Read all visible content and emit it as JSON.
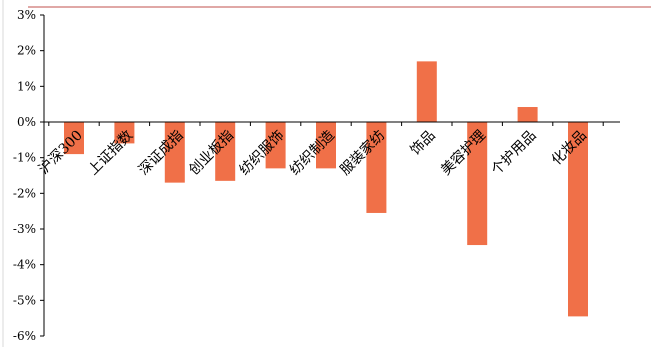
{
  "chart_data": {
    "type": "bar",
    "categories": [
      "沪深300",
      "上证指数",
      "深证成指",
      "创业板指",
      "纺织服饰",
      "纺织制造",
      "服装家纺",
      "饰品",
      "美容护理",
      "个护用品",
      "化妆品"
    ],
    "values": [
      -0.9,
      -0.6,
      -1.7,
      -1.65,
      -1.3,
      -1.3,
      -2.55,
      1.7,
      -3.45,
      0.42,
      -5.45
    ],
    "y_ticks": [
      "3%",
      "2%",
      "1%",
      "0%",
      "-1%",
      "-2%",
      "-3%",
      "-4%",
      "-5%",
      "-6%"
    ],
    "ylim": [
      -6,
      3
    ],
    "grid": false,
    "colors": {
      "bar": "#f07048",
      "top_rule": "#c0504d",
      "axis": "#000000"
    }
  }
}
